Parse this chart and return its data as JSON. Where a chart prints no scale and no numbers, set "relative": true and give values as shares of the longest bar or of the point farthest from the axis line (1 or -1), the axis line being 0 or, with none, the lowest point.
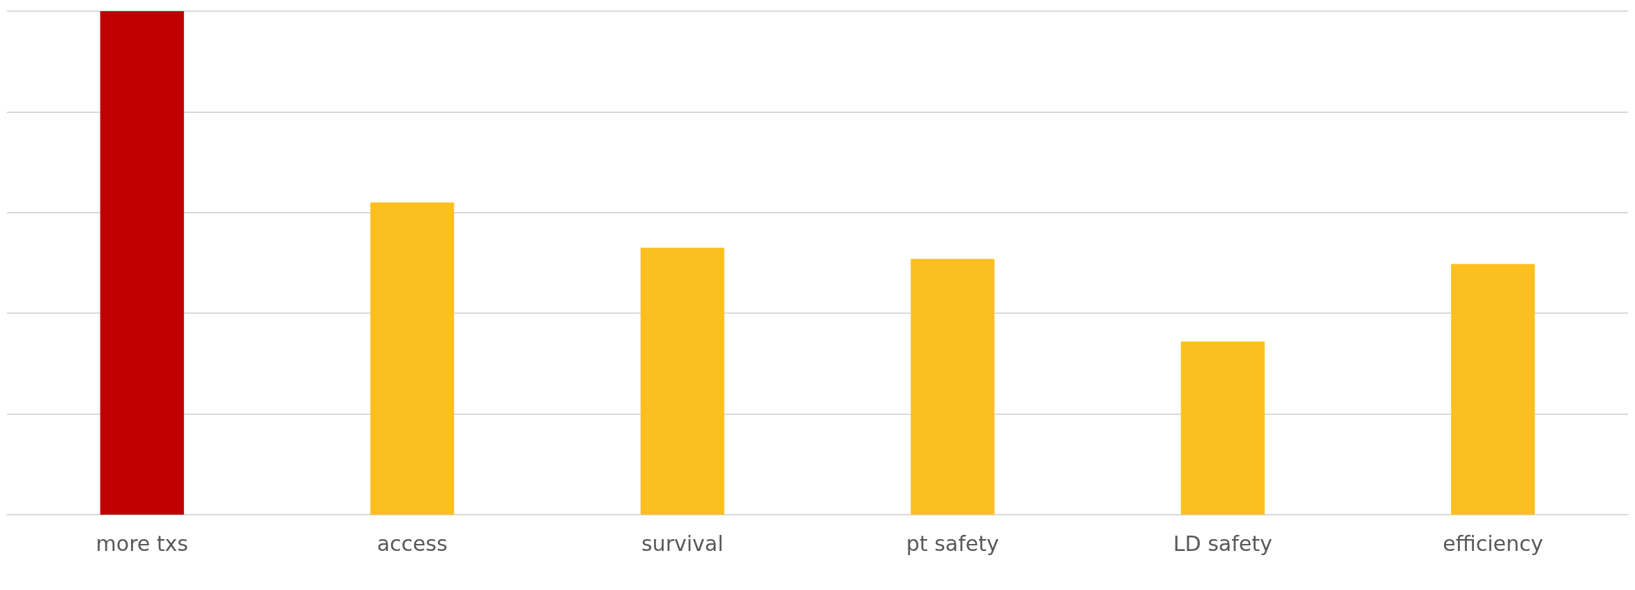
{
  "chart_data": {
    "type": "bar",
    "relative": true,
    "categories": [
      "more txs",
      "access",
      "survival",
      "pt safety",
      "LD safety",
      "efficiency"
    ],
    "values": [
      1,
      0.62,
      0.53,
      0.508,
      0.344,
      0.498
    ],
    "colors": [
      "#c00000",
      "#fbc020",
      "#fbc020",
      "#fbc020",
      "#fbc020",
      "#fbc020"
    ],
    "grid": true
  }
}
